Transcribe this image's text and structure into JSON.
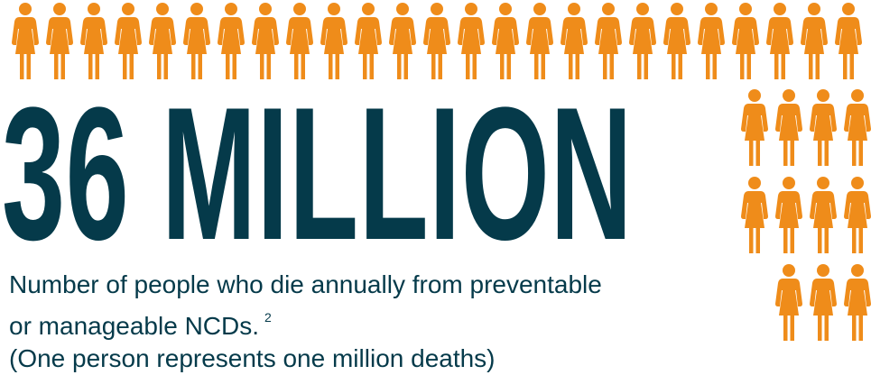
{
  "colors": {
    "person": "#ef8c1a",
    "headline": "#053a4a",
    "caption": "#053a4a"
  },
  "headline": "36 MILLION",
  "caption": {
    "line1": "Number of people who die annually from preventable",
    "line2": "or manageable NCDs.",
    "footnote": "2",
    "line3": "(One person represents one million deaths)"
  },
  "pictogram": {
    "icon": "person-icon",
    "total_people": 36,
    "represents": "one million deaths"
  }
}
